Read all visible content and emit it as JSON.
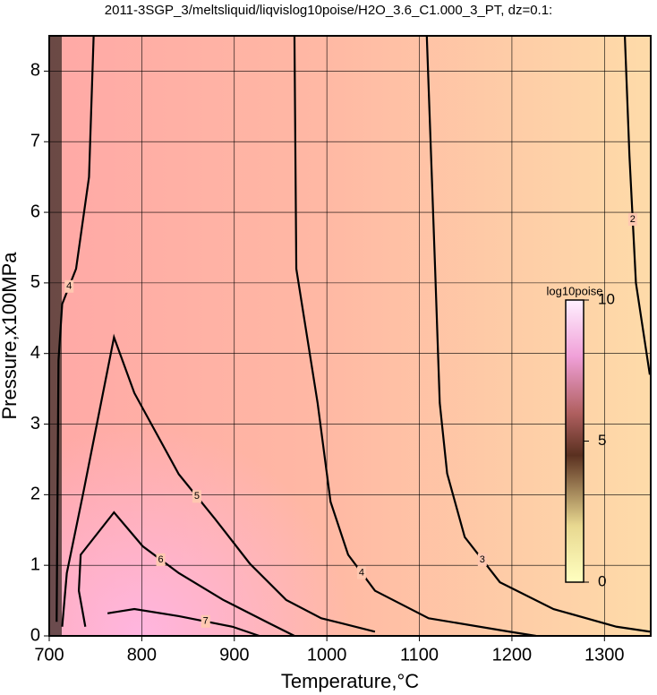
{
  "chart_data": {
    "type": "contour",
    "title": "2011-3SGP_3/meltsliquid/liqvislog10poise/H2O_3.6_C1.000_3_PT, dz=0.1:",
    "xlabel": "Temperature,°C",
    "ylabel": "Pressure,x100MPa",
    "xlim": [
      700,
      1350
    ],
    "ylim": [
      0,
      8.5
    ],
    "xticks": [
      700,
      800,
      900,
      1000,
      1100,
      1200,
      1300
    ],
    "yticks": [
      0,
      1,
      2,
      3,
      4,
      5,
      6,
      7,
      8
    ],
    "grid": true,
    "colorbar": {
      "title": "log10poise",
      "clim": [
        0,
        10
      ],
      "cticks": [
        0,
        5,
        10
      ]
    },
    "contours": [
      {
        "level": 2,
        "x": [
          1322,
          1327,
          1334,
          1349
        ],
        "y": [
          8.5,
          6.8,
          5.0,
          3.7
        ]
      },
      {
        "level": 3,
        "x": [
          1108,
          1117,
          1122,
          1130,
          1149,
          1187,
          1245,
          1313,
          1349
        ],
        "y": [
          8.5,
          5.2,
          3.3,
          2.3,
          1.4,
          0.76,
          0.38,
          0.13,
          0.06
        ]
      },
      {
        "level": 4,
        "x": [
          965,
          967,
          990,
          1004,
          1023,
          1052,
          1110,
          1197,
          1226
        ],
        "y": [
          8.5,
          5.2,
          3.3,
          1.9,
          1.15,
          0.64,
          0.25,
          0.06,
          0
        ]
      },
      {
        "level": 4,
        "x": [
          748,
          743,
          729,
          714,
          710,
          708
        ],
        "y": [
          8.5,
          6.5,
          5.2,
          4.7,
          3.9,
          0.2
        ]
      },
      {
        "level": 5,
        "x": [
          714,
          719,
          737,
          770,
          792,
          840,
          879,
          917,
          956,
          994,
          1052
        ],
        "y": [
          0.13,
          0.89,
          2.04,
          4.23,
          3.44,
          2.29,
          1.66,
          1.02,
          0.51,
          0.25,
          0.06
        ]
      },
      {
        "level": 6,
        "x": [
          739,
          732,
          734,
          770,
          801,
          840,
          888,
          936,
          965
        ],
        "y": [
          0.13,
          0.64,
          1.15,
          1.75,
          1.27,
          0.89,
          0.51,
          0.19,
          0
        ]
      },
      {
        "level": 7,
        "x": [
          763,
          792,
          840,
          898,
          927
        ],
        "y": [
          0.32,
          0.38,
          0.28,
          0.13,
          0
        ]
      }
    ]
  }
}
